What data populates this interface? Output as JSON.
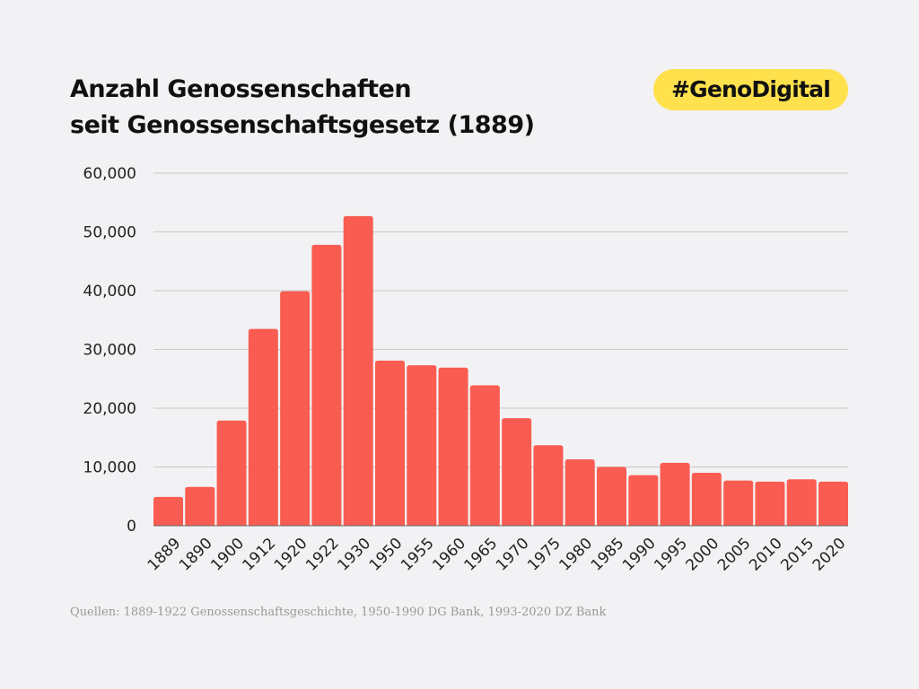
{
  "header": {
    "title_line1": "Anzahl Genossenschaften",
    "title_line2": "seit Genossenschaftsgesetz (1889)",
    "badge": "#GenoDigital"
  },
  "footer": {
    "source": "Quellen: 1889-1922 Genossenschaftsgeschichte, 1950-1990 DG Bank, 1993-2020 DZ Bank"
  },
  "colors": {
    "bar": "#fa5c52",
    "badge": "#ffe14d",
    "grid": "#c8c8c8"
  },
  "chart_data": {
    "type": "bar",
    "title": "Anzahl Genossenschaften seit Genossenschaftsgesetz (1889)",
    "xlabel": "",
    "ylabel": "",
    "ylim": [
      0,
      60000
    ],
    "yticks": [
      "0",
      "10,000",
      "20,000",
      "30,000",
      "40,000",
      "50,000",
      "60,000"
    ],
    "grid": true,
    "categories": [
      "1889",
      "1890",
      "1900",
      "1912",
      "1920",
      "1922",
      "1930",
      "1950",
      "1955",
      "1960",
      "1965",
      "1970",
      "1975",
      "1980",
      "1985",
      "1990",
      "1995",
      "2000",
      "2005",
      "2010",
      "2015",
      "2020"
    ],
    "values": [
      4900,
      6600,
      17900,
      33500,
      39900,
      47800,
      52700,
      28100,
      27300,
      26900,
      23900,
      18300,
      13700,
      11300,
      10000,
      8600,
      10700,
      9000,
      7700,
      7500,
      7900,
      7500
    ]
  }
}
